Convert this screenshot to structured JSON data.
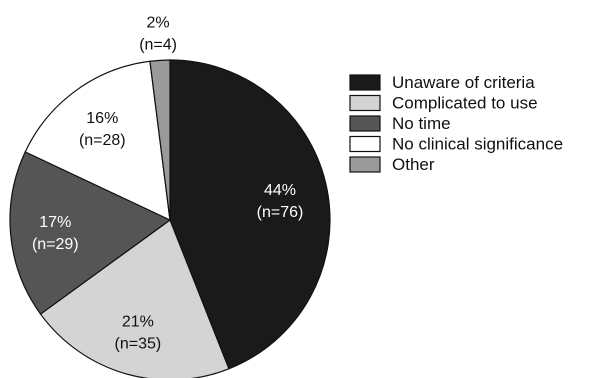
{
  "chart_data": {
    "type": "pie",
    "start": "top, clockwise",
    "slices": [
      {
        "label": "Unaware of criteria",
        "value": 44,
        "percent_label": "44%",
        "count_label": "(n=76)",
        "color": "#1a1a1a",
        "text_color": "#ffffff"
      },
      {
        "label": "Complicated to use",
        "value": 21,
        "percent_label": "21%",
        "count_label": "(n=35)",
        "color": "#d4d4d4",
        "text_color": "#111111"
      },
      {
        "label": "No time",
        "value": 17,
        "percent_label": "17%",
        "count_label": "(n=29)",
        "color": "#555555",
        "text_color": "#ffffff"
      },
      {
        "label": "No clinical significance",
        "value": 16,
        "percent_label": "16%",
        "count_label": "(n=28)",
        "color": "#ffffff",
        "text_color": "#111111"
      },
      {
        "label": "Other",
        "value": 2,
        "percent_label": "2%",
        "count_label": "(n=4)",
        "color": "#9a9a9a",
        "text_color": "#111111"
      }
    ],
    "legend_position": "right"
  }
}
